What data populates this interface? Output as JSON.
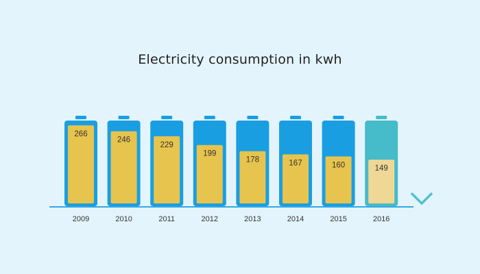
{
  "chart_data": {
    "type": "bar",
    "title": "Electricity consumption in kwh",
    "categories": [
      "2009",
      "2010",
      "2011",
      "2012",
      "2013",
      "2014",
      "2015",
      "2016"
    ],
    "values": [
      266,
      246,
      229,
      199,
      178,
      167,
      160,
      149
    ],
    "value_labels": [
      "266",
      "246",
      "229",
      "199",
      "178",
      "167",
      "160",
      "149"
    ],
    "highlight_category": "2016",
    "trend": "down",
    "colors": {
      "background": "#e3f4fd",
      "battery": "#1a9ee2",
      "battery_highlight": "#46bbc9",
      "fill": "#e7c44d",
      "fill_highlight": "#efd896",
      "baseline": "#34a8e2",
      "trend_arrow": "#55bfcf"
    },
    "icons": {
      "bar": "battery-icon",
      "trend": "arrow-down-icon"
    }
  }
}
